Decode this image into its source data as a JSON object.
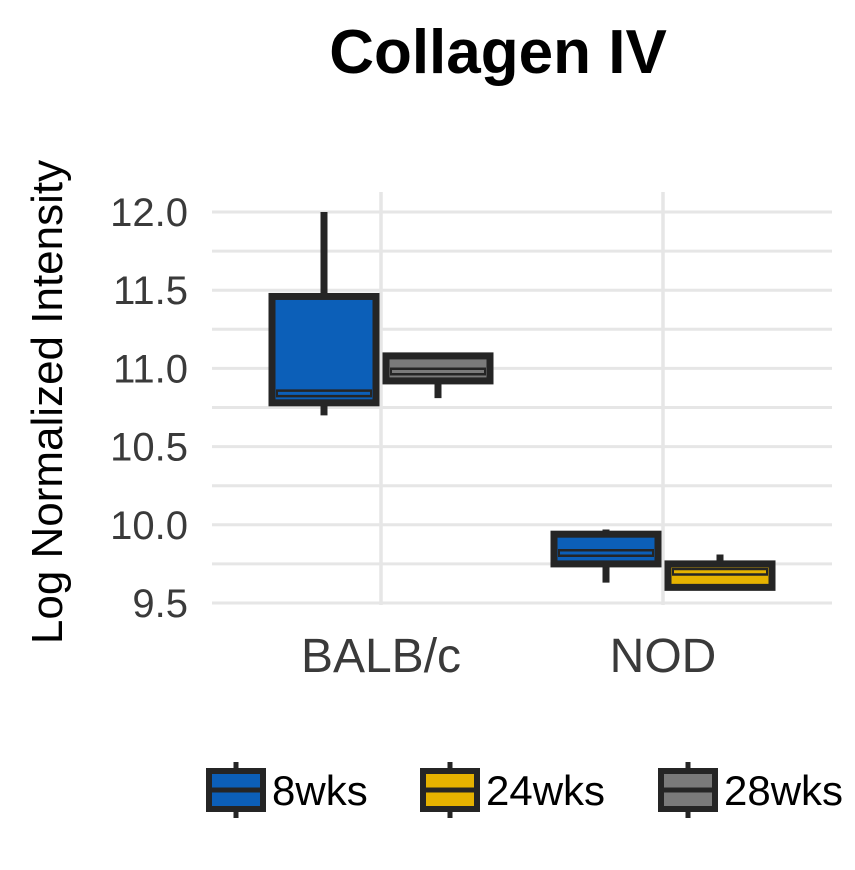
{
  "chart_data": {
    "type": "box",
    "title": "Collagen IV",
    "xlabel": "",
    "ylabel": "Log Normalized Intensity",
    "ylim": [
      9.5,
      12.0
    ],
    "yticks": [
      "9.5",
      "10.0",
      "10.5",
      "11.0",
      "11.5",
      "12.0"
    ],
    "categories": [
      "BALB/c",
      "NOD"
    ],
    "grid": true,
    "legend_position": "bottom",
    "series": [
      {
        "name": "8wks",
        "color": "#0c5fb8",
        "boxes": [
          {
            "category": "BALB/c",
            "min": 10.7,
            "q1": 10.78,
            "median": 10.84,
            "q3": 11.46,
            "max": 12.0
          },
          {
            "category": "NOD",
            "min": 9.63,
            "q1": 9.75,
            "median": 9.82,
            "q3": 9.94,
            "max": 9.97
          }
        ]
      },
      {
        "name": "24wks",
        "color": "#e6b200",
        "boxes": [
          {
            "category": "NOD",
            "min": 9.6,
            "q1": 9.6,
            "median": 9.7,
            "q3": 9.75,
            "max": 9.81
          }
        ]
      },
      {
        "name": "28wks",
        "color": "#7a7a7a",
        "boxes": [
          {
            "category": "BALB/c",
            "min": 10.81,
            "q1": 10.92,
            "median": 10.98,
            "q3": 11.08,
            "max": 11.08
          }
        ]
      }
    ]
  }
}
